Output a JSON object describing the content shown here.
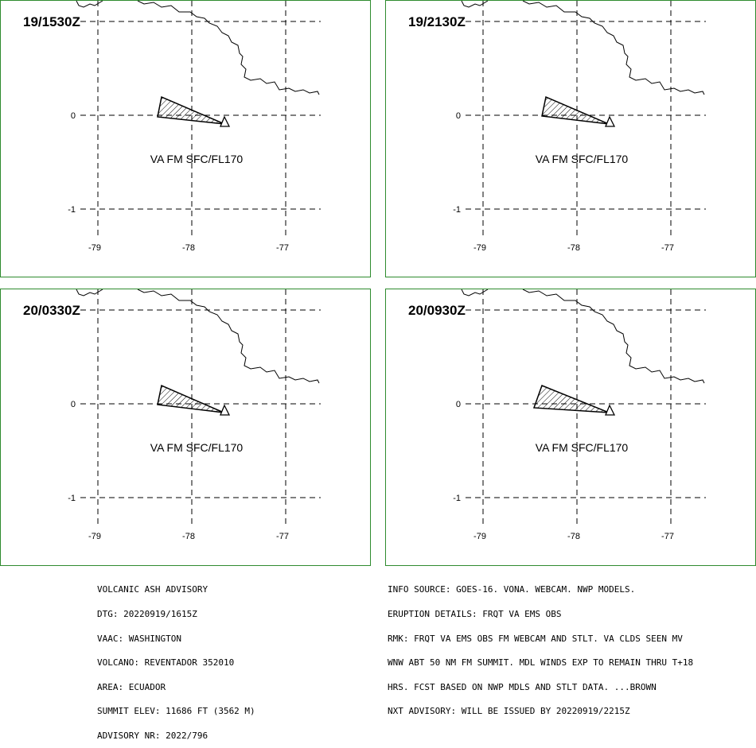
{
  "panels": [
    {
      "time": "19/1530Z",
      "va_label": "VA FM SFC/FL170",
      "plume": "narrow"
    },
    {
      "time": "19/2130Z",
      "va_label": "VA FM SFC/FL170",
      "plume": "narrow"
    },
    {
      "time": "20/0330Z",
      "va_label": "VA FM SFC/FL170",
      "plume": "narrow"
    },
    {
      "time": "20/0930Z",
      "va_label": "VA FM SFC/FL170",
      "plume": "wide"
    }
  ],
  "lat_labels": [
    "0",
    "-1"
  ],
  "lon_labels": [
    "-79",
    "-78",
    "-77"
  ],
  "advisory_left": [
    "VOLCANIC ASH ADVISORY",
    "DTG: 20220919/1615Z",
    "VAAC: WASHINGTON",
    "VOLCANO: REVENTADOR 352010",
    "AREA: ECUADOR",
    "SUMMIT ELEV: 11686 FT (3562 M)",
    "ADVISORY NR: 2022/796"
  ],
  "advisory_right": [
    "INFO SOURCE: GOES-16. VONA. WEBCAM. NWP MODELS.",
    "ERUPTION DETAILS: FRQT VA EMS OBS",
    "RMK: FRQT VA EMS OBS FM WEBCAM AND STLT. VA CLDS SEEN MV",
    "WNW ABT 50 NM FM SUMMIT. MDL WINDS EXP TO REMAIN THRU T+18",
    "HRS. FCST BASED ON NWP MDLS AND STLT DATA. ...BROWN",
    "NXT ADVISORY: WILL BE ISSUED BY 20220919/2215Z"
  ],
  "colors": {
    "frame": "#2e8b2e",
    "lines": "#000000"
  }
}
